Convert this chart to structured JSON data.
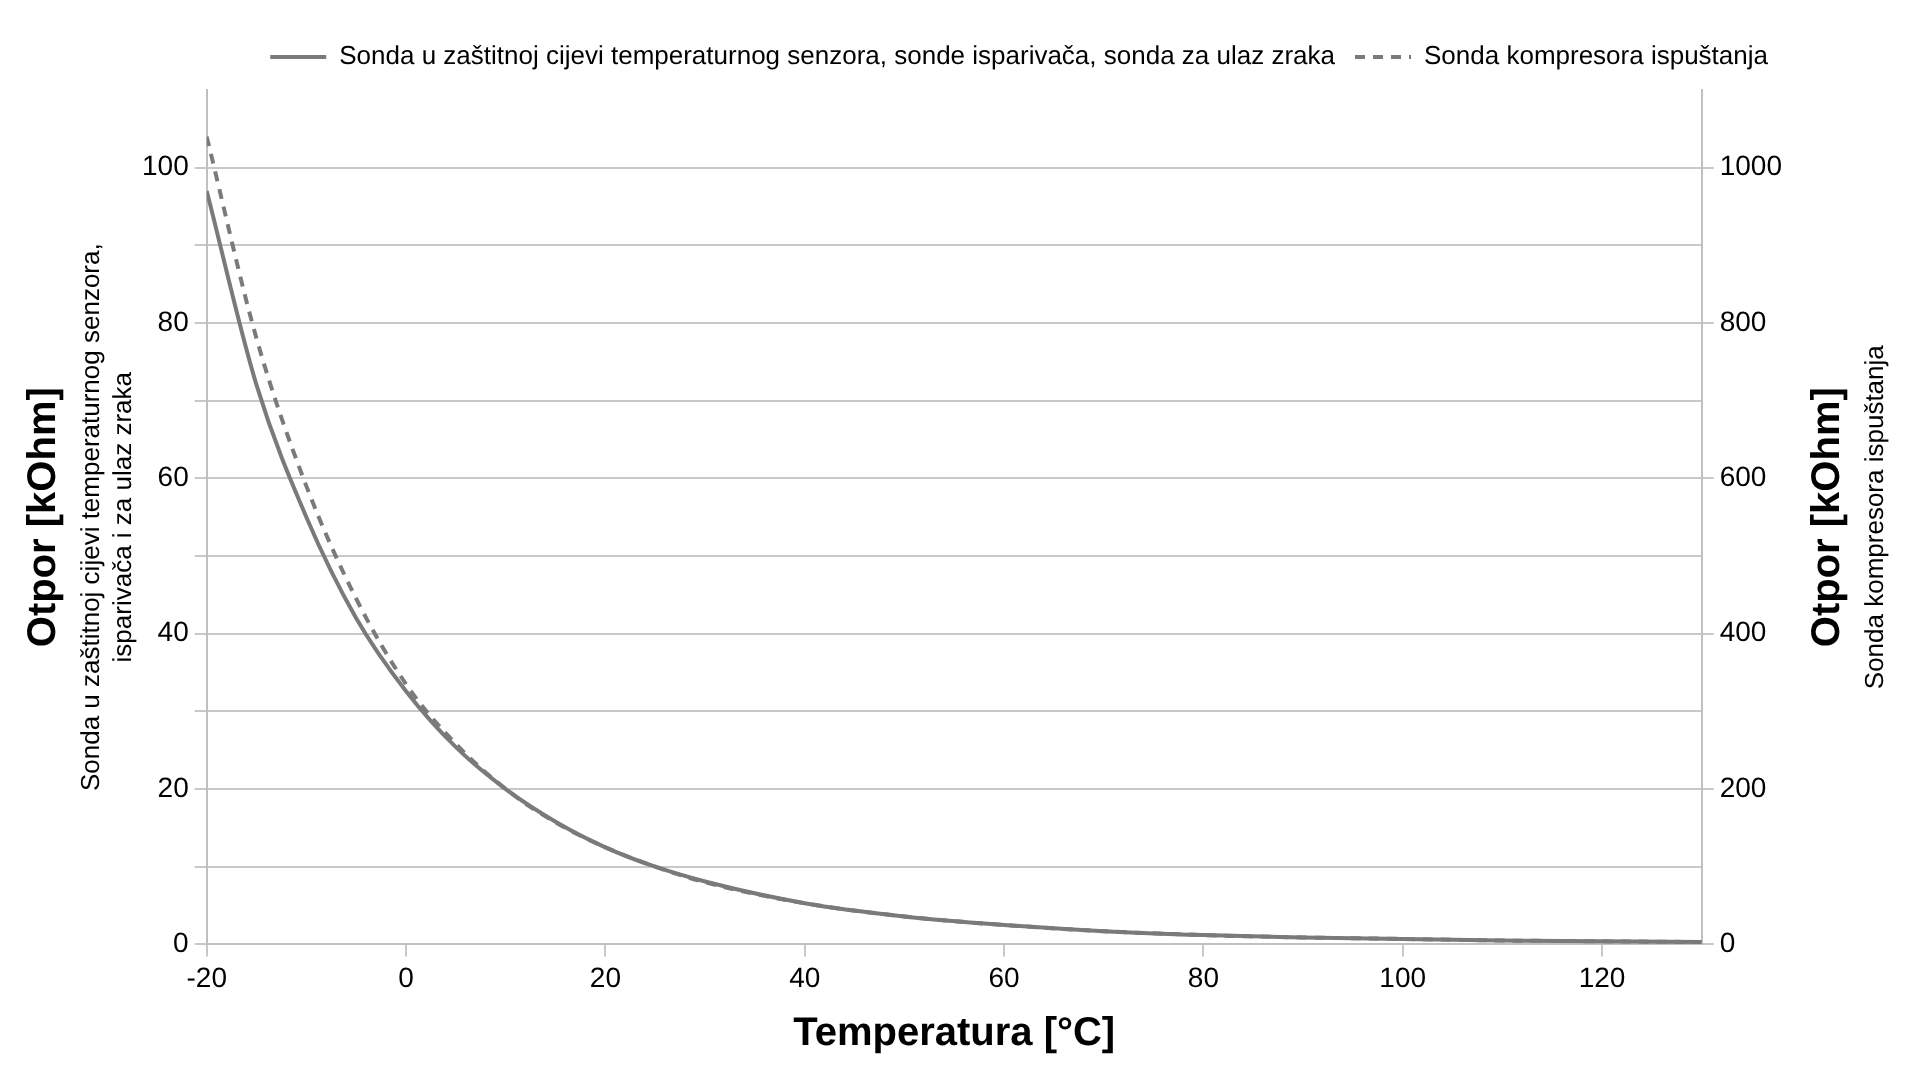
{
  "chart_data": {
    "type": "line",
    "xlabel": "Temperatura [°C]",
    "ylabel": "Otpor [kOhm]\nSonda u zaštitnoj cijevi temperaturnog senzora,\nisparivača i za ulaz zraka",
    "y2label": "Otpor [kOhm]\nSonda kompresora ispuštanja",
    "x": [
      -20,
      -15,
      -10,
      -5,
      0,
      5,
      10,
      15,
      20,
      25,
      30,
      40,
      50,
      60,
      70,
      80,
      90,
      100,
      110,
      120,
      130
    ],
    "series": [
      {
        "name": "Sonda u zaštitnoj cijevi temperaturnog senzora, sonde isparivača, sonda za ulaz zraka",
        "color": "#7a7a7a",
        "line_style": "solid",
        "values": [
          97,
          72,
          55,
          42,
          32.6,
          25.4,
          20,
          15.8,
          12.5,
          10,
          8.1,
          5.3,
          3.6,
          2.5,
          1.7,
          1.2,
          0.9,
          0.7,
          0.5,
          0.4,
          0.3
        ]
      },
      {
        "name": "Sonda kompresora ispuštanja",
        "color": "#7a7a7a",
        "line_style": "dashed",
        "axis": "y2",
        "values": [
          1040,
          780,
          590,
          445,
          335,
          258,
          200,
          157,
          125,
          100,
          80,
          53,
          36,
          25,
          17,
          12,
          9,
          7,
          5,
          4,
          3
        ]
      }
    ],
    "xlim": [
      -20,
      130
    ],
    "xticks": [
      -20,
      0,
      20,
      40,
      60,
      80,
      100,
      120
    ],
    "ylim": [
      0,
      110
    ],
    "yticks": [
      0,
      {
        "value": 10,
        "label": null
      },
      20,
      {
        "value": 30,
        "label": null
      },
      40,
      {
        "value": 50,
        "label": null
      },
      60,
      {
        "value": 70,
        "label": null
      },
      80,
      {
        "value": 90,
        "label": null
      },
      100
    ],
    "y2lim": [
      0,
      1100
    ],
    "y2ticks": [
      0,
      200,
      400,
      600,
      800,
      1000
    ],
    "grid": "y",
    "legend": "top right",
    "marker": "none"
  }
}
